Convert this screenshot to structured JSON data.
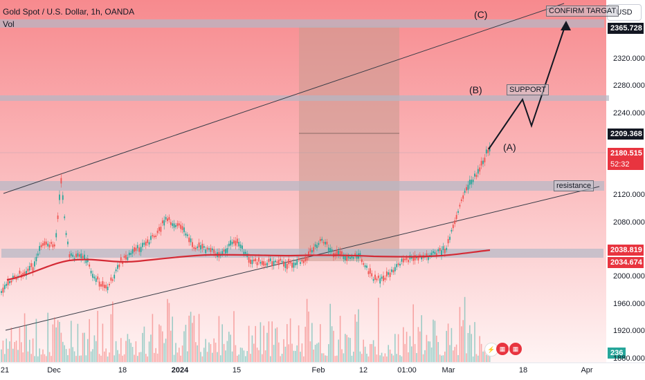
{
  "header": {
    "symbol_title": "Gold Spot / U.S. Dollar, 1h, OANDA",
    "volume_label": "Vol"
  },
  "toolbar": {
    "currency_button": "USD"
  },
  "price_axis": {
    "ticks": [
      "2320.000",
      "2280.000",
      "2240.000",
      "2120.000",
      "2080.000",
      "2000.000",
      "1960.000",
      "1920.000",
      "1880.000"
    ],
    "badges": {
      "confirm_level": "2365.728",
      "support_level": "2209.368",
      "last_price": "2180.515",
      "countdown": "52:32",
      "ma_upper": "2038.819",
      "ma_lower": "2034.674",
      "volume": "236"
    }
  },
  "time_axis": {
    "ticks": [
      "21",
      "Dec",
      "18",
      "2024",
      "15",
      "Feb",
      "12",
      "01:00",
      "Mar",
      "18",
      "Apr"
    ]
  },
  "annotations": {
    "confirm_target": "CONFIRM TARGAT",
    "support": "SUPPORT",
    "resistance": "resistance",
    "wave_a": "(A)",
    "wave_b": "(B)",
    "wave_c": "(C)"
  },
  "colors": {
    "zone_top": "#f7898c",
    "zone_bottom": "#fde7e8",
    "band": "#b3b8c6",
    "ma_line": "#d42a35",
    "bull": "#26a69a",
    "bear": "#ef5350",
    "badge_red": "#e8343f",
    "badge_dark": "#131722",
    "badge_blue": "#2962ff"
  }
}
